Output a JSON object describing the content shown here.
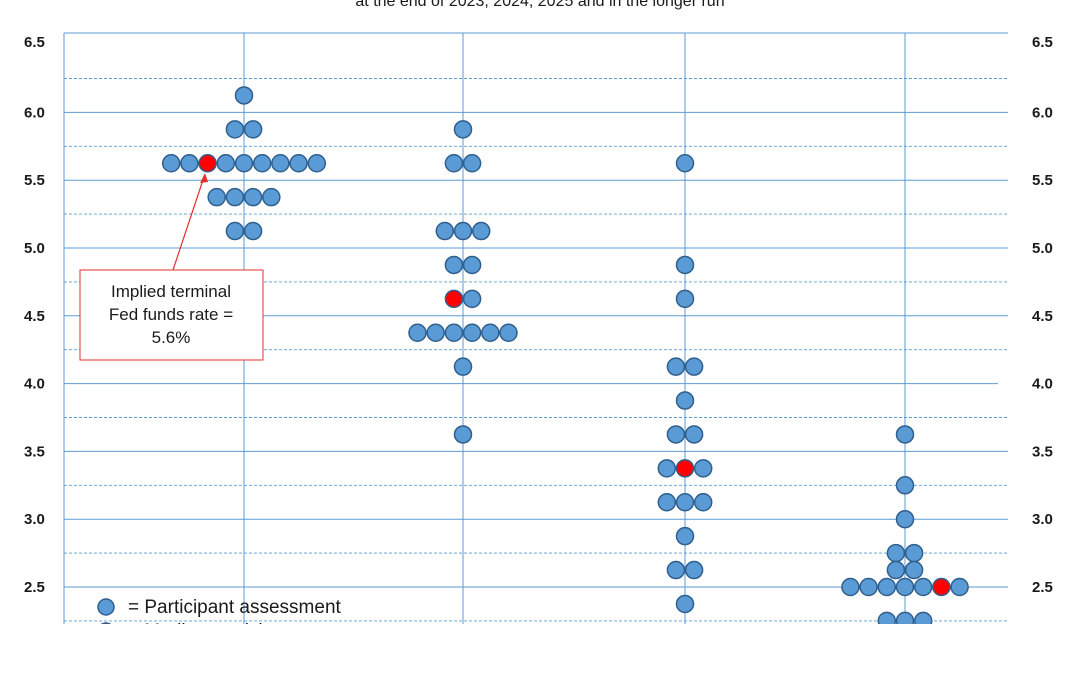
{
  "subtitle": "at the end of 2023, 2024, 2025 and in the longer run",
  "legend": {
    "participant": "= Participant assessment",
    "median": "= Median participant assessment"
  },
  "annotation": {
    "lines": [
      "Implied terminal",
      "Fed funds rate =",
      "5.6%"
    ]
  },
  "colors": {
    "participant_fill": "#5b9bd5",
    "participant_stroke": "#2e5f8e",
    "median_fill": "#ff0000",
    "grid_major": "#5b9bd5",
    "grid_minor": "#5b9bd5",
    "annotation_border": "#e03030"
  },
  "chart_data": {
    "type": "scatter",
    "title": "",
    "xlabel": "",
    "ylabel": "",
    "ylim": [
      2.25,
      6.5
    ],
    "yticks": [
      "2.5",
      "3.0",
      "3.5",
      "4.0",
      "4.5",
      "5.0",
      "5.5",
      "6.0",
      "6.5"
    ],
    "y_axis_both_sides": true,
    "grid": true,
    "legend_position": "bottom-left",
    "groups": [
      {
        "dots": [
          {
            "y": 6.125,
            "n": 1
          },
          {
            "y": 5.875,
            "n": 2
          },
          {
            "y": 5.625,
            "n": 9,
            "median_index": 2
          },
          {
            "y": 5.375,
            "n": 4
          },
          {
            "y": 5.125,
            "n": 2
          }
        ]
      },
      {
        "dots": [
          {
            "y": 5.875,
            "n": 1
          },
          {
            "y": 5.625,
            "n": 2
          },
          {
            "y": 5.125,
            "n": 3
          },
          {
            "y": 4.875,
            "n": 2
          },
          {
            "y": 4.625,
            "n": 2,
            "median_index": 0
          },
          {
            "y": 4.375,
            "n": 6
          },
          {
            "y": 4.125,
            "n": 1
          },
          {
            "y": 3.625,
            "n": 1
          }
        ]
      },
      {
        "dots": [
          {
            "y": 5.625,
            "n": 1
          },
          {
            "y": 4.875,
            "n": 1
          },
          {
            "y": 4.625,
            "n": 1
          },
          {
            "y": 4.125,
            "n": 2
          },
          {
            "y": 3.875,
            "n": 1
          },
          {
            "y": 3.625,
            "n": 2
          },
          {
            "y": 3.375,
            "n": 3,
            "median_index": 1
          },
          {
            "y": 3.125,
            "n": 3
          },
          {
            "y": 2.875,
            "n": 1
          },
          {
            "y": 2.625,
            "n": 2
          },
          {
            "y": 2.375,
            "n": 1
          }
        ]
      },
      {
        "dots": [
          {
            "y": 3.625,
            "n": 1
          },
          {
            "y": 3.25,
            "n": 1
          },
          {
            "y": 3.0,
            "n": 1
          },
          {
            "y": 2.75,
            "n": 2
          },
          {
            "y": 2.625,
            "n": 2
          },
          {
            "y": 2.5,
            "n": 7,
            "median_index": 5
          },
          {
            "y": 2.25,
            "n": 3
          }
        ]
      }
    ]
  }
}
